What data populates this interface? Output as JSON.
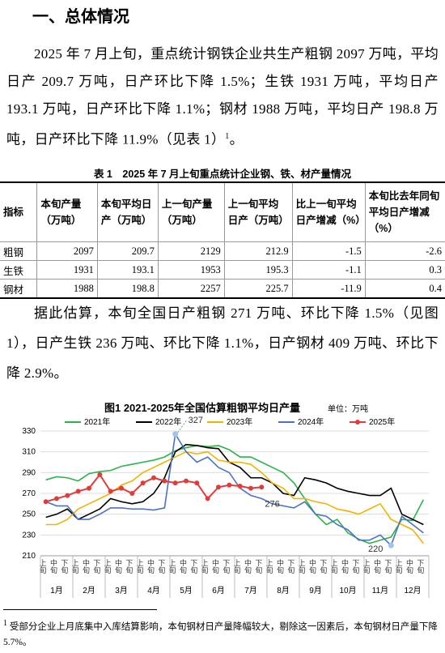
{
  "heading": "一、总体情况",
  "para1": {
    "text": "2025 年 7 月上旬，重点统计钢铁企业共生产粗钢 2097 万吨，平均日产 209.7 万吨，日产环比下降 1.5%；生铁 1931 万吨，平均日产 193.1 万吨，日产环比下降 1.1%；钢材 1988 万吨，平均日产 198.8 万吨，日产环比下降 11.9%（见表 1）",
    "footnote_ref": "1",
    "end": "。"
  },
  "table": {
    "caption": "表 1　2025 年 7 月上旬重点统计企业钢、铁、材产量情况",
    "headers": [
      "指标",
      "本旬产量（万吨）",
      "本旬平均日产（万吨）",
      "上一旬产量（万吨）",
      "上一旬平均日产（万吨）",
      "比上一旬平均日产增减（%）",
      "本旬比去年同旬平均日产增减（%）"
    ],
    "rows": [
      [
        "粗钢",
        2097,
        209.7,
        2129,
        212.9,
        -1.5,
        -2.6
      ],
      [
        "生铁",
        1931,
        193.1,
        1953,
        195.3,
        -1.1,
        0.3
      ],
      [
        "钢材",
        1988,
        198.8,
        2257,
        225.7,
        -11.9,
        0.4
      ]
    ]
  },
  "para2": "据此估算，本旬全国日产粗钢 271 万吨、环比下降 1.5%（见图 1），日产生铁 236 万吨、环比下降 1.1%，日产钢材 409 万吨、环比下降 2.9%。",
  "chart_data": {
    "type": "line",
    "title": "图1 2021-2025年全国估算粗钢平均日产量",
    "unit": "单位：万吨",
    "categories": [
      "上旬",
      "中旬",
      "下旬",
      "上旬",
      "中旬",
      "下旬",
      "上旬",
      "中旬",
      "下旬",
      "上旬",
      "中旬",
      "下旬",
      "上旬",
      "中旬",
      "下旬",
      "上旬",
      "中旬",
      "下旬",
      "上旬",
      "中旬",
      "下旬",
      "上旬",
      "中旬",
      "下旬",
      "上旬",
      "中旬",
      "下旬",
      "上旬",
      "中旬",
      "下旬",
      "上旬",
      "中旬",
      "下旬",
      "上旬",
      "中旬",
      "下旬"
    ],
    "groups": [
      "1月",
      "2月",
      "3月",
      "4月",
      "5月",
      "6月",
      "7月",
      "8月",
      "9月",
      "10月",
      "11月",
      "12月"
    ],
    "ylim": [
      210,
      330
    ],
    "yticks": [
      210,
      230,
      250,
      270,
      290,
      310,
      330
    ],
    "grid": true,
    "series": [
      {
        "name": "2021年",
        "color": "#2eb24b",
        "values": [
          283,
          286,
          285,
          282,
          289,
          291,
          292,
          296,
          298,
          300,
          302,
          305,
          311,
          314,
          316,
          315,
          316,
          312,
          305,
          305,
          300,
          295,
          290,
          280,
          265,
          250,
          240,
          245,
          232,
          226,
          222,
          225,
          228,
          245,
          244,
          264
        ]
      },
      {
        "name": "2022年",
        "color": "#000000",
        "values": [
          247,
          250,
          255,
          245,
          250,
          255,
          265,
          262,
          260,
          262,
          270,
          285,
          310,
          317,
          316,
          314,
          313,
          300,
          295,
          285,
          285,
          280,
          270,
          268,
          285,
          283,
          280,
          275,
          272,
          270,
          268,
          268,
          275,
          250,
          245,
          240
        ]
      },
      {
        "name": "2023年",
        "color": "#f0b400",
        "values": [
          240,
          240,
          245,
          255,
          260,
          265,
          270,
          278,
          282,
          290,
          295,
          300,
          305,
          310,
          308,
          310,
          302,
          300,
          300,
          298,
          290,
          280,
          275,
          265,
          265,
          262,
          260,
          255,
          253,
          250,
          255,
          260,
          245,
          240,
          235,
          222
        ]
      },
      {
        "name": "2024年",
        "color": "#4a72c4",
        "values": [
          262,
          258,
          258,
          245,
          245,
          250,
          256,
          256,
          255,
          255,
          254,
          256,
          327,
          310,
          300,
          305,
          295,
          290,
          275,
          268,
          265,
          260,
          258,
          256,
          262,
          250,
          248,
          240,
          235,
          225,
          225,
          230,
          220,
          248,
          240,
          232
        ],
        "value_labels": [
          null,
          null,
          null,
          null,
          null,
          null,
          null,
          null,
          null,
          null,
          null,
          null,
          "327",
          null,
          null,
          null,
          null,
          null,
          null,
          null,
          null,
          null,
          null,
          null,
          null,
          null,
          null,
          null,
          null,
          null,
          null,
          null,
          "220",
          null,
          null,
          null
        ]
      },
      {
        "name": "2025年",
        "color": "#e03c3c",
        "values": [
          262,
          265,
          268,
          272,
          275,
          288,
          272,
          275,
          270,
          280,
          285,
          282,
          280,
          282,
          280,
          265,
          276,
          278,
          277,
          275,
          276,
          null,
          null,
          null,
          null,
          null,
          null,
          null,
          null,
          null,
          null,
          null,
          null,
          null,
          null,
          null
        ],
        "value_labels": [
          null,
          null,
          null,
          null,
          null,
          null,
          null,
          null,
          null,
          null,
          null,
          null,
          null,
          null,
          null,
          null,
          null,
          null,
          null,
          null,
          "276",
          null,
          null,
          null,
          null,
          null,
          null,
          null,
          null,
          null,
          null,
          null,
          null,
          null,
          null,
          null
        ]
      }
    ]
  },
  "footnote": {
    "marker": "1",
    "text": "受部分企业上月底集中入库结算影响，本旬钢材日产量降幅较大，剔除这一因素后，本旬钢材日产量下降5.7%。"
  }
}
